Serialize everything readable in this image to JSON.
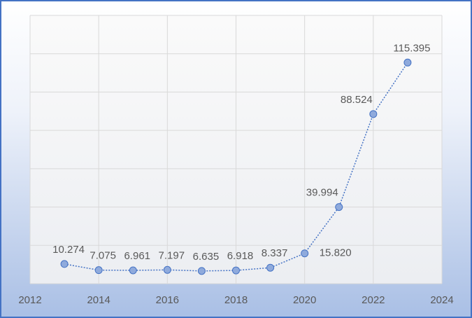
{
  "chart_data": {
    "type": "line",
    "x": [
      2013,
      2014,
      2015,
      2016,
      2017,
      2018,
      2019,
      2020,
      2021,
      2022,
      2023
    ],
    "series": [
      {
        "color": "#4472c4",
        "marker_color": "#8faadc",
        "values": [
          10.274,
          7.075,
          6.961,
          7.197,
          6.635,
          6.918,
          8.337,
          15.82,
          39.994,
          88.524,
          115.395
        ],
        "value_labels": [
          "10.274",
          "7.075",
          "6.961",
          "7.197",
          "6.635",
          "6.918",
          "8.337",
          "15.820",
          "39.994",
          "88.524",
          "115.395"
        ]
      }
    ],
    "xlim": [
      2012,
      2024
    ],
    "xticks": [
      2012,
      2014,
      2016,
      2018,
      2020,
      2022,
      2024
    ],
    "ylim": [
      0,
      140
    ],
    "yticks": [
      0,
      20,
      40,
      60,
      80,
      100,
      120,
      140
    ],
    "y_tick_labels": false,
    "grid": true
  }
}
